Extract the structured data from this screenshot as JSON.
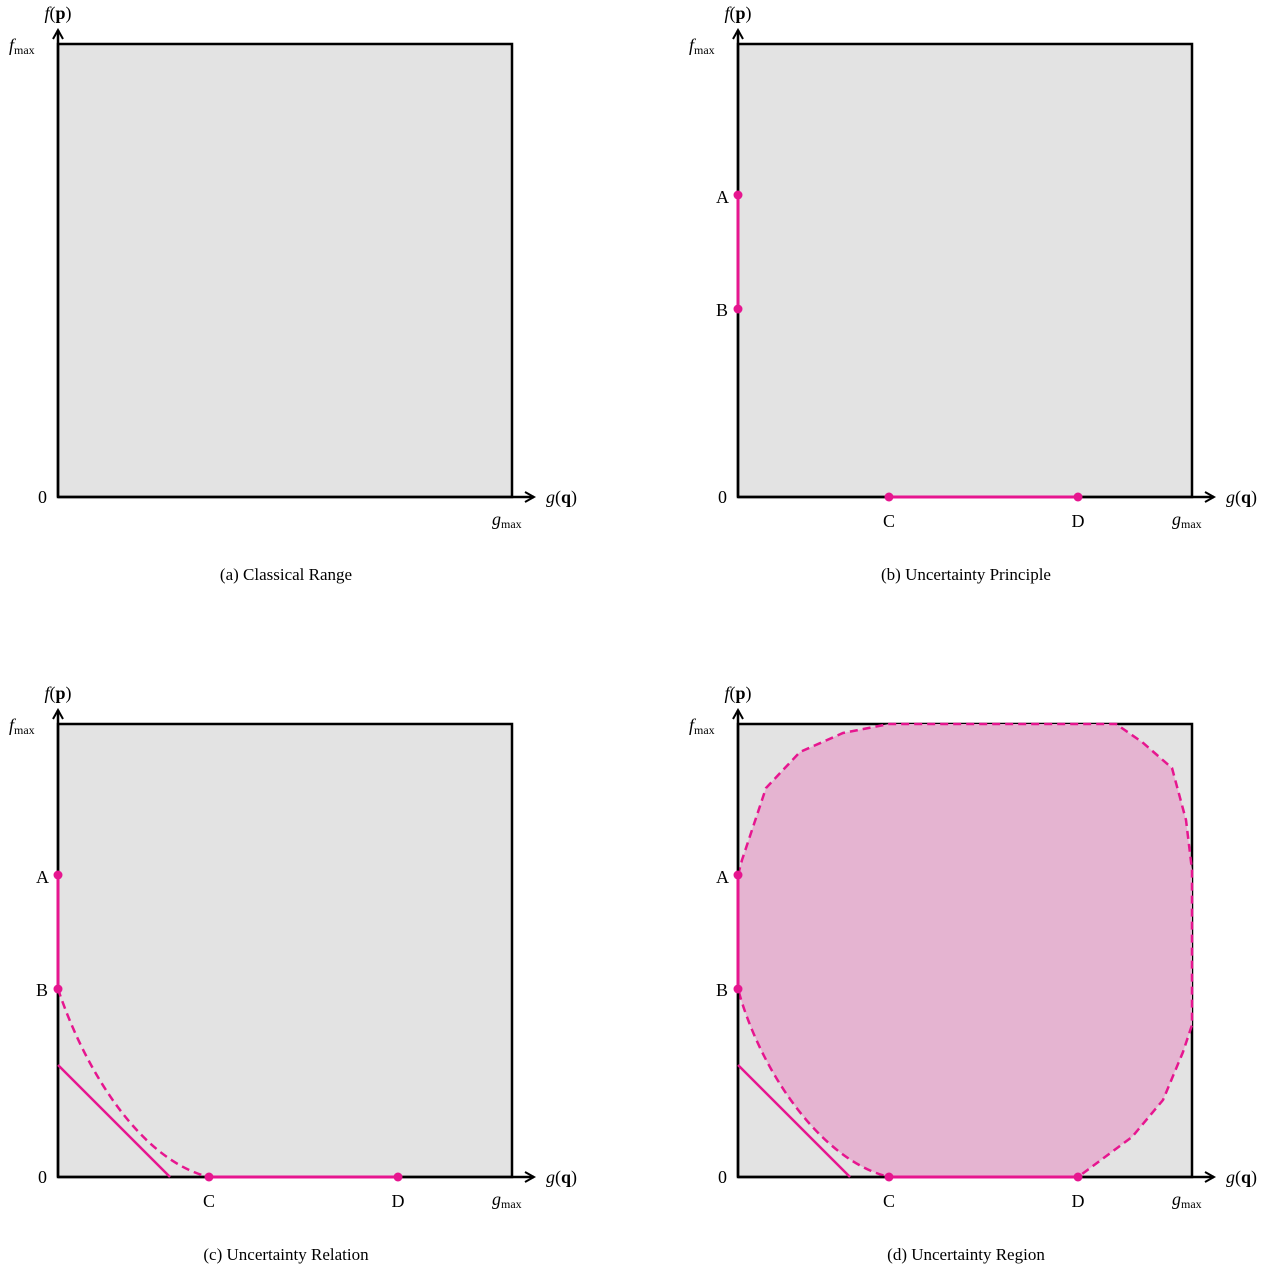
{
  "colors": {
    "panel_fill": "#e3e3e3",
    "axis": "#000000",
    "accent": "#e6168f",
    "region_fill": "#e5b4d1"
  },
  "axes": {
    "y_label_italic": "f",
    "y_label_arg": "p",
    "x_label_italic": "g",
    "x_label_arg": "q",
    "y_max_italic": "f",
    "x_max_italic": "g",
    "max_sub": "max",
    "origin": "0",
    "open_paren": "(",
    "close_paren": ")"
  },
  "points": {
    "A": "A",
    "B": "B",
    "C": "C",
    "D": "D"
  },
  "panels": [
    {
      "id": "a",
      "caption": "(a) Classical Range"
    },
    {
      "id": "b",
      "caption": "(b) Uncertainty Principle"
    },
    {
      "id": "c",
      "caption": "(c) Uncertainty Relation"
    },
    {
      "id": "d",
      "caption": "(d) Uncertainty Region"
    }
  ]
}
